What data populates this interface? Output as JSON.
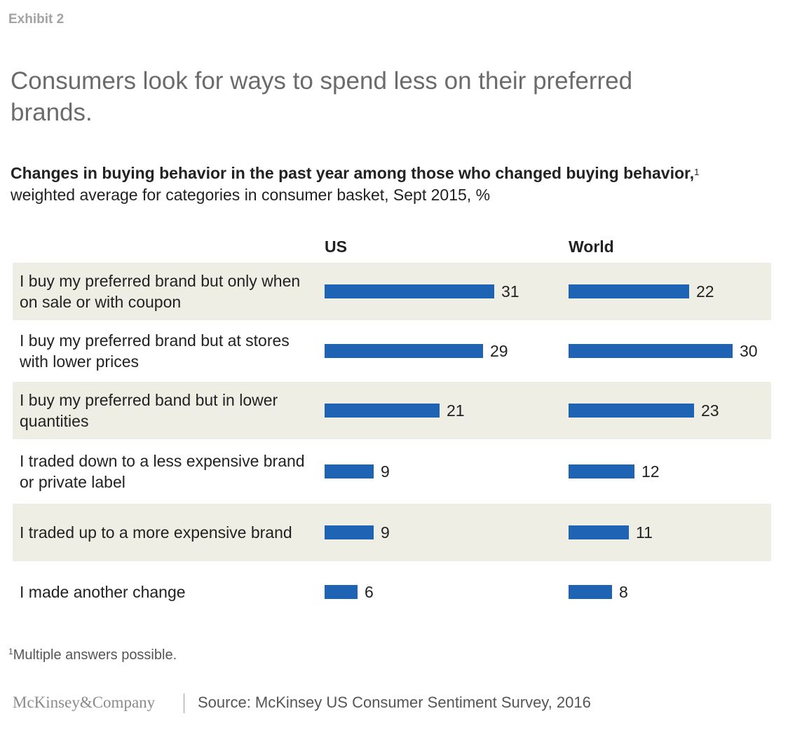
{
  "exhibit_label": "Exhibit 2",
  "headline": "Consumers look for ways to spend less on their preferred brands.",
  "chart_data": {
    "type": "bar",
    "title": "Changes in buying behavior in the past year among those who changed buying behavior,",
    "title_footnote_marker": "1",
    "subtitle": "weighted average for categories in consumer basket, Sept 2015, %",
    "categories": [
      "I buy my preferred brand but only when on sale or with coupon",
      "I buy my preferred brand but at stores with lower prices",
      "I buy my preferred band but in lower quantities",
      "I traded down to a less expensive brand or private label",
      "I traded up to a more expensive brand",
      "I made another change"
    ],
    "series": [
      {
        "name": "US",
        "values": [
          31,
          29,
          21,
          9,
          9,
          6
        ]
      },
      {
        "name": "World",
        "values": [
          22,
          30,
          23,
          12,
          11,
          8
        ]
      }
    ],
    "orientation": "horizontal",
    "bar_color": "#1f64b4",
    "row_shading": "#efeee4"
  },
  "footnote": {
    "marker": "1",
    "text": "Multiple answers possible."
  },
  "footer": {
    "logo_text": "McKinsey&Company",
    "source": "Source: McKinsey US Consumer Sentiment Survey, 2016"
  }
}
